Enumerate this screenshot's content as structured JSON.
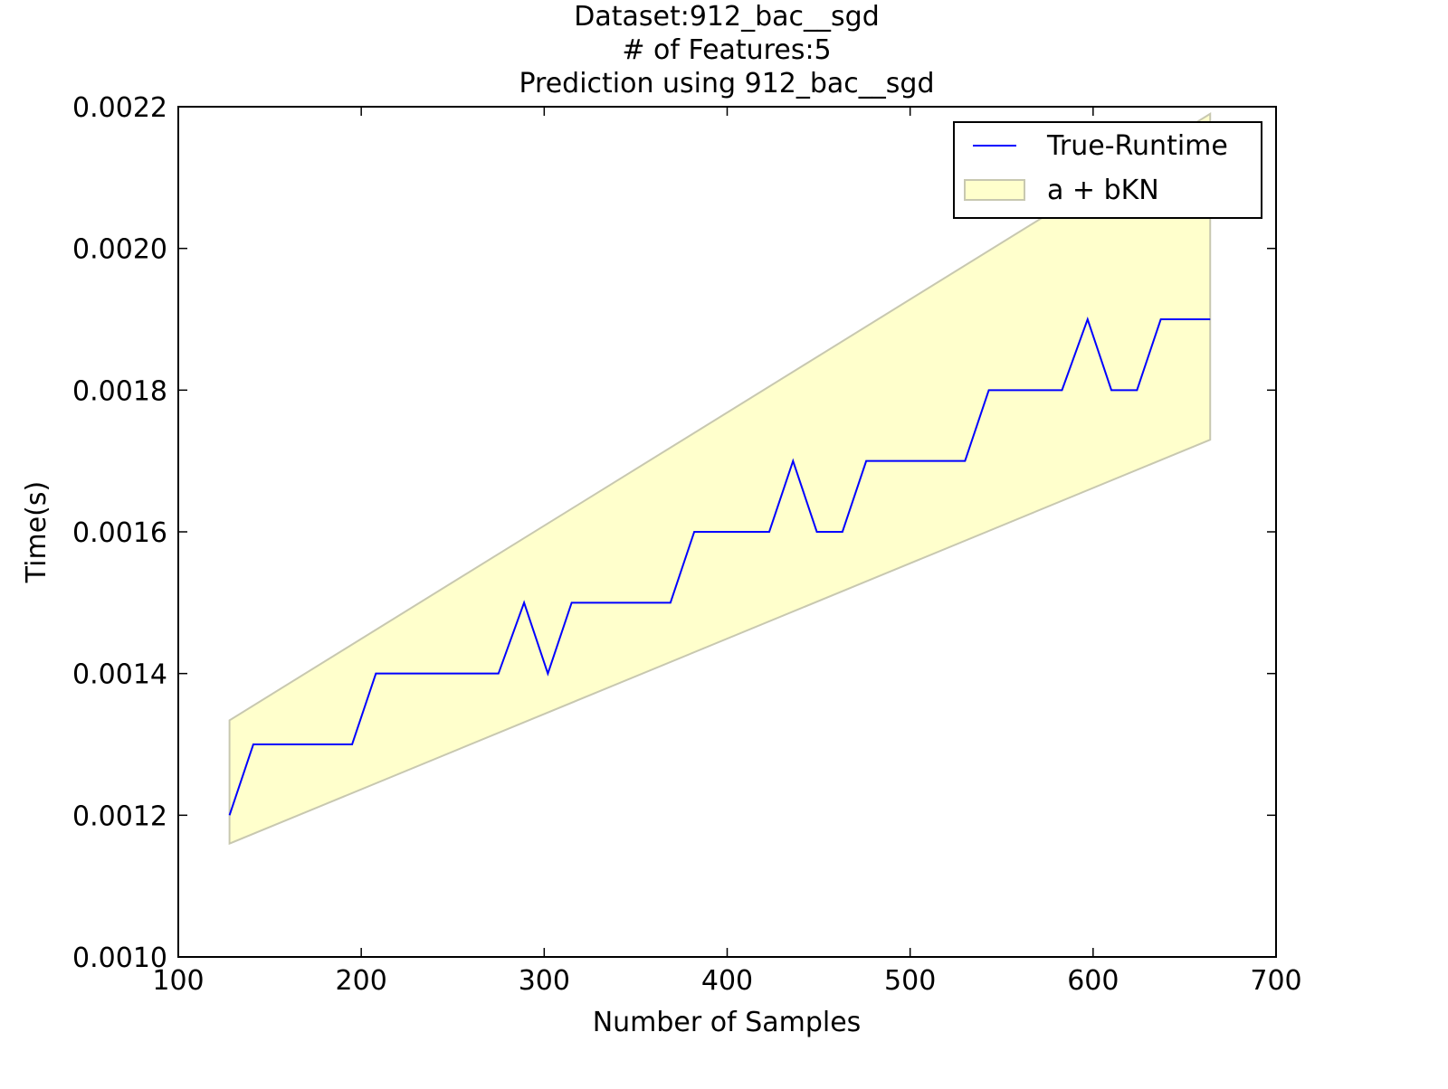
{
  "chart_data": {
    "type": "line",
    "title_lines": [
      "Dataset:912_bac__sgd",
      "# of Features:5",
      "Prediction using 912_bac__sgd"
    ],
    "xlabel": "Number of Samples",
    "ylabel": "Time(s)",
    "xlim": [
      100,
      700
    ],
    "ylim": [
      0.001,
      0.0022
    ],
    "x_ticks": [
      100,
      200,
      300,
      400,
      500,
      600,
      700
    ],
    "x_tick_labels": [
      "100",
      "200",
      "300",
      "400",
      "500",
      "600",
      "700"
    ],
    "y_ticks": [
      0.001,
      0.0012,
      0.0014,
      0.0016,
      0.0018,
      0.002,
      0.0022
    ],
    "y_tick_labels": [
      "0.0010",
      "0.0012",
      "0.0014",
      "0.0016",
      "0.0018",
      "0.0020",
      "0.0022"
    ],
    "grid": false,
    "legend_position": "top-right",
    "series": [
      {
        "name": "True-Runtime",
        "kind": "line",
        "color": "#0000ff",
        "x": [
          128,
          141,
          155,
          168,
          181,
          195,
          208,
          222,
          235,
          248,
          262,
          275,
          289,
          302,
          315,
          329,
          342,
          356,
          369,
          382,
          396,
          409,
          423,
          436,
          449,
          463,
          476,
          490,
          503,
          516,
          530,
          543,
          557,
          570,
          583,
          597,
          610,
          624,
          637,
          650,
          664
        ],
        "y": [
          0.0012,
          0.0013,
          0.0013,
          0.0013,
          0.0013,
          0.0013,
          0.0014,
          0.0014,
          0.0014,
          0.0014,
          0.0014,
          0.0014,
          0.0015,
          0.0014,
          0.0015,
          0.0015,
          0.0015,
          0.0015,
          0.0015,
          0.0016,
          0.0016,
          0.0016,
          0.0016,
          0.0017,
          0.0016,
          0.0016,
          0.0017,
          0.0017,
          0.0017,
          0.0017,
          0.0017,
          0.0018,
          0.0018,
          0.0018,
          0.0018,
          0.0019,
          0.0018,
          0.0018,
          0.0019,
          0.0019,
          0.0019
        ]
      },
      {
        "name": "a + bKN",
        "kind": "band",
        "fill_color": "#ffffcc",
        "edge_color": "#c8c8b0",
        "x": [
          128,
          664
        ],
        "lower": [
          0.00116,
          0.00173
        ],
        "upper": [
          0.001334,
          0.00219
        ]
      }
    ]
  }
}
